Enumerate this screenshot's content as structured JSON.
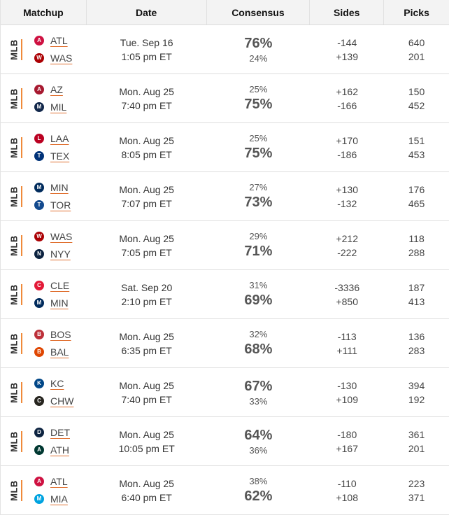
{
  "header": {
    "matchup": "Matchup",
    "date": "Date",
    "consensus": "Consensus",
    "sides": "Sides",
    "picks": "Picks"
  },
  "rows": [
    {
      "league": "MLB",
      "away": {
        "abbr": "ATL",
        "logo": "atl-logo-icon",
        "color": "#ce1141"
      },
      "home": {
        "abbr": "WAS",
        "logo": "was-logo-icon",
        "color": "#ab0003"
      },
      "date": "Tue. Sep 16",
      "time": "1:05 pm ET",
      "cons_away": "76%",
      "cons_home": "24%",
      "side_away": "-144",
      "side_home": "+139",
      "picks_away": "640",
      "picks_home": "201"
    },
    {
      "league": "MLB",
      "away": {
        "abbr": "AZ",
        "logo": "az-logo-icon",
        "color": "#a71930"
      },
      "home": {
        "abbr": "MIL",
        "logo": "mil-logo-icon",
        "color": "#12284b"
      },
      "date": "Mon. Aug 25",
      "time": "7:40 pm ET",
      "cons_away": "25%",
      "cons_home": "75%",
      "side_away": "+162",
      "side_home": "-166",
      "picks_away": "150",
      "picks_home": "452"
    },
    {
      "league": "MLB",
      "away": {
        "abbr": "LAA",
        "logo": "laa-logo-icon",
        "color": "#ba0021"
      },
      "home": {
        "abbr": "TEX",
        "logo": "tex-logo-icon",
        "color": "#003278"
      },
      "date": "Mon. Aug 25",
      "time": "8:05 pm ET",
      "cons_away": "25%",
      "cons_home": "75%",
      "side_away": "+170",
      "side_home": "-186",
      "picks_away": "151",
      "picks_home": "453"
    },
    {
      "league": "MLB",
      "away": {
        "abbr": "MIN",
        "logo": "min-logo-icon",
        "color": "#002b5c"
      },
      "home": {
        "abbr": "TOR",
        "logo": "tor-logo-icon",
        "color": "#134a8e"
      },
      "date": "Mon. Aug 25",
      "time": "7:07 pm ET",
      "cons_away": "27%",
      "cons_home": "73%",
      "side_away": "+130",
      "side_home": "-132",
      "picks_away": "176",
      "picks_home": "465"
    },
    {
      "league": "MLB",
      "away": {
        "abbr": "WAS",
        "logo": "was-logo-icon",
        "color": "#ab0003"
      },
      "home": {
        "abbr": "NYY",
        "logo": "nyy-logo-icon",
        "color": "#0c2340"
      },
      "date": "Mon. Aug 25",
      "time": "7:05 pm ET",
      "cons_away": "29%",
      "cons_home": "71%",
      "side_away": "+212",
      "side_home": "-222",
      "picks_away": "118",
      "picks_home": "288"
    },
    {
      "league": "MLB",
      "away": {
        "abbr": "CLE",
        "logo": "cle-logo-icon",
        "color": "#e31937"
      },
      "home": {
        "abbr": "MIN",
        "logo": "min-logo-icon",
        "color": "#002b5c"
      },
      "date": "Sat. Sep 20",
      "time": "2:10 pm ET",
      "cons_away": "31%",
      "cons_home": "69%",
      "side_away": "-3336",
      "side_home": "+850",
      "picks_away": "187",
      "picks_home": "413"
    },
    {
      "league": "MLB",
      "away": {
        "abbr": "BOS",
        "logo": "bos-logo-icon",
        "color": "#bd3039"
      },
      "home": {
        "abbr": "BAL",
        "logo": "bal-logo-icon",
        "color": "#df4601"
      },
      "date": "Mon. Aug 25",
      "time": "6:35 pm ET",
      "cons_away": "32%",
      "cons_home": "68%",
      "side_away": "-113",
      "side_home": "+111",
      "picks_away": "136",
      "picks_home": "283"
    },
    {
      "league": "MLB",
      "away": {
        "abbr": "KC",
        "logo": "kc-logo-icon",
        "color": "#004687"
      },
      "home": {
        "abbr": "CHW",
        "logo": "chw-logo-icon",
        "color": "#27251f"
      },
      "date": "Mon. Aug 25",
      "time": "7:40 pm ET",
      "cons_away": "67%",
      "cons_home": "33%",
      "side_away": "-130",
      "side_home": "+109",
      "picks_away": "394",
      "picks_home": "192"
    },
    {
      "league": "MLB",
      "away": {
        "abbr": "DET",
        "logo": "det-logo-icon",
        "color": "#0c2340"
      },
      "home": {
        "abbr": "ATH",
        "logo": "ath-logo-icon",
        "color": "#003831"
      },
      "date": "Mon. Aug 25",
      "time": "10:05 pm ET",
      "cons_away": "64%",
      "cons_home": "36%",
      "side_away": "-180",
      "side_home": "+167",
      "picks_away": "361",
      "picks_home": "201"
    },
    {
      "league": "MLB",
      "away": {
        "abbr": "ATL",
        "logo": "atl-logo-icon",
        "color": "#ce1141"
      },
      "home": {
        "abbr": "MIA",
        "logo": "mia-logo-icon",
        "color": "#00a3e0"
      },
      "date": "Mon. Aug 25",
      "time": "6:40 pm ET",
      "cons_away": "38%",
      "cons_home": "62%",
      "side_away": "-110",
      "side_home": "+108",
      "picks_away": "223",
      "picks_home": "371"
    }
  ]
}
